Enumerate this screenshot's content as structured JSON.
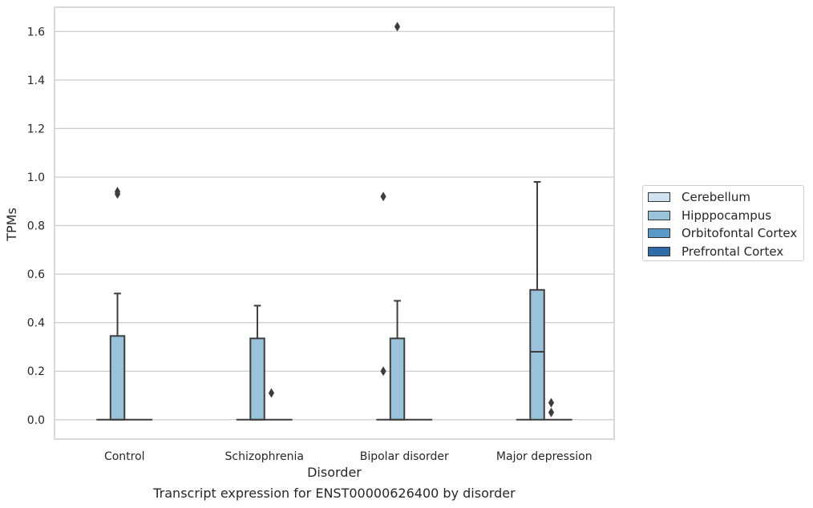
{
  "chart_data": {
    "type": "box",
    "caption": "Transcript expression for ENST00000626400 by disorder",
    "xlabel": "Disorder",
    "ylabel": "TPMs",
    "ylim": [
      -0.08,
      1.7
    ],
    "yticks": [
      "0.0",
      "0.2",
      "0.4",
      "0.6",
      "0.8",
      "1.0",
      "1.2",
      "1.4",
      "1.6"
    ],
    "ytick_values": [
      0.0,
      0.2,
      0.4,
      0.6,
      0.8,
      1.0,
      1.2,
      1.4,
      1.6
    ],
    "grid": true,
    "legend_position": "right",
    "categories": [
      "Control",
      "Schizophrenia",
      "Bipolar disorder",
      "Major depression"
    ],
    "series": [
      {
        "name": "Cerebellum",
        "color": "#d0e1f2",
        "boxes": [
          {
            "q1": 0,
            "median": 0,
            "q3": 0,
            "whisker_low": 0,
            "whisker_high": 0,
            "outliers": []
          },
          {
            "q1": 0,
            "median": 0,
            "q3": 0,
            "whisker_low": 0,
            "whisker_high": 0,
            "outliers": []
          },
          {
            "q1": 0,
            "median": 0,
            "q3": 0,
            "whisker_low": 0,
            "whisker_high": 0,
            "outliers": [
              0.2
            ]
          },
          {
            "q1": 0,
            "median": 0,
            "q3": 0,
            "whisker_low": 0,
            "whisker_high": 0,
            "outliers": []
          }
        ]
      },
      {
        "name": "Hipppocampus",
        "color": "#9ac3db",
        "boxes": [
          {
            "q1": 0,
            "median": 0,
            "q3": 0.345,
            "whisker_low": 0,
            "whisker_high": 0.52,
            "outliers": [
              0.93,
              0.94
            ]
          },
          {
            "q1": 0,
            "median": 0,
            "q3": 0.335,
            "whisker_low": 0,
            "whisker_high": 0.47,
            "outliers": []
          },
          {
            "q1": 0,
            "median": 0,
            "q3": 0.335,
            "whisker_low": 0,
            "whisker_high": 0.49,
            "outliers": [
              1.62
            ]
          },
          {
            "q1": 0,
            "median": 0.28,
            "q3": 0.535,
            "whisker_low": 0,
            "whisker_high": 0.98,
            "outliers": []
          }
        ]
      },
      {
        "name": "Orbitofontal Cortex",
        "color": "#5a9ac6",
        "boxes": [
          {
            "q1": 0,
            "median": 0,
            "q3": 0,
            "whisker_low": 0,
            "whisker_high": 0,
            "outliers": []
          },
          {
            "q1": 0,
            "median": 0,
            "q3": 0,
            "whisker_low": 0,
            "whisker_high": 0,
            "outliers": [
              0.11
            ]
          },
          {
            "q1": 0,
            "median": 0,
            "q3": 0,
            "whisker_low": 0,
            "whisker_high": 0,
            "outliers": []
          },
          {
            "q1": 0,
            "median": 0,
            "q3": 0,
            "whisker_low": 0,
            "whisker_high": 0,
            "outliers": [
              0.07,
              0.03
            ]
          }
        ]
      },
      {
        "name": "Prefrontal Cortex",
        "color": "#2d6ca9",
        "boxes": [
          {
            "q1": 0,
            "median": 0,
            "q3": 0,
            "whisker_low": 0,
            "whisker_high": 0,
            "outliers": []
          },
          {
            "q1": 0,
            "median": 0,
            "q3": 0,
            "whisker_low": 0,
            "whisker_high": 0,
            "outliers": []
          },
          {
            "q1": 0,
            "median": 0,
            "q3": 0,
            "whisker_low": 0,
            "whisker_high": 0,
            "outliers": []
          },
          {
            "q1": 0,
            "median": 0,
            "q3": 0,
            "whisker_low": 0,
            "whisker_high": 0,
            "outliers": []
          }
        ]
      }
    ],
    "extra_outliers": [
      {
        "category_index": 2,
        "value": 0.92,
        "series_offset": 0.5
      }
    ]
  }
}
